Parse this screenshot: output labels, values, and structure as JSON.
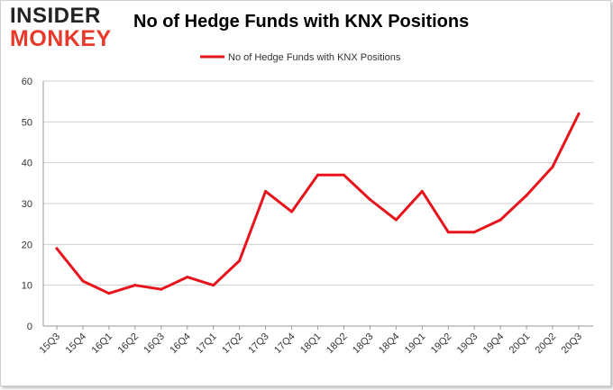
{
  "logo": {
    "line1": "INSIDER",
    "line2": "MONKEY"
  },
  "colors": {
    "line": "#e8141c",
    "grid": "#d0d0d0",
    "logo_dark": "#222222",
    "logo_red": "#e83a2a"
  },
  "chart_data": {
    "type": "line",
    "title": "No of Hedge Funds with KNX Positions",
    "xlabel": "",
    "ylabel": "",
    "ylim": [
      0,
      60
    ],
    "yticks": [
      0,
      10,
      20,
      30,
      40,
      50,
      60
    ],
    "grid": true,
    "legend_position": "top-center",
    "categories": [
      "15Q3",
      "15Q4",
      "16Q1",
      "16Q2",
      "16Q3",
      "16Q4",
      "17Q1",
      "17Q2",
      "17Q3",
      "17Q4",
      "18Q1",
      "18Q2",
      "18Q3",
      "18Q4",
      "19Q1",
      "19Q2",
      "19Q3",
      "19Q4",
      "20Q1",
      "20Q2",
      "20Q3"
    ],
    "series": [
      {
        "name": "No of Hedge Funds with KNX Positions",
        "values": [
          19,
          11,
          8,
          10,
          9,
          12,
          10,
          16,
          33,
          28,
          37,
          37,
          31,
          26,
          33,
          23,
          23,
          26,
          32,
          39,
          52
        ]
      }
    ]
  }
}
